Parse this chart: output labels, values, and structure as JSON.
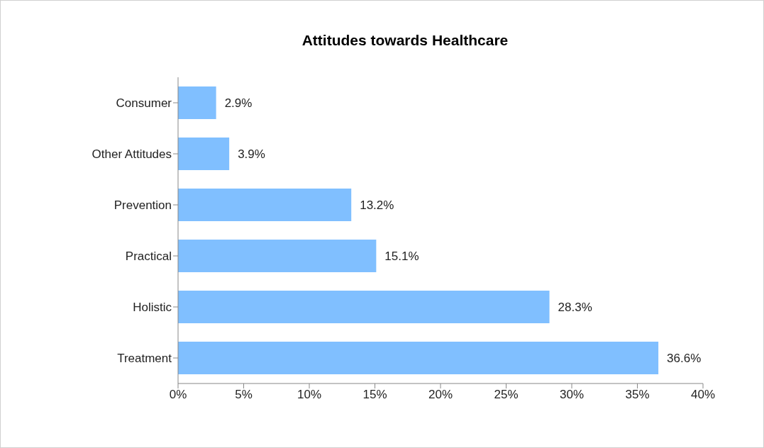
{
  "chart_data": {
    "type": "bar",
    "orientation": "horizontal",
    "title": "Attitudes towards Healthcare",
    "categories": [
      "Consumer",
      "Other Attitudes",
      "Prevention",
      "Practical",
      "Holistic",
      "Treatment"
    ],
    "values": [
      2.9,
      3.9,
      13.2,
      15.1,
      28.3,
      36.6
    ],
    "value_labels": [
      "2.9%",
      "3.9%",
      "13.2%",
      "15.1%",
      "28.3%",
      "36.6%"
    ],
    "color": "#80bfff",
    "xlim": [
      0,
      40
    ],
    "xticks": [
      {
        "value": 0,
        "label": "0%"
      },
      {
        "value": 5,
        "label": "5%"
      },
      {
        "value": 10,
        "label": "10%"
      },
      {
        "value": 15,
        "label": "15%"
      },
      {
        "value": 20,
        "label": "20%"
      },
      {
        "value": 25,
        "label": "25%"
      },
      {
        "value": 30,
        "label": "30%"
      },
      {
        "value": 35,
        "label": "35%"
      },
      {
        "value": 40,
        "label": "40%"
      }
    ],
    "grid": false,
    "legend": false
  }
}
